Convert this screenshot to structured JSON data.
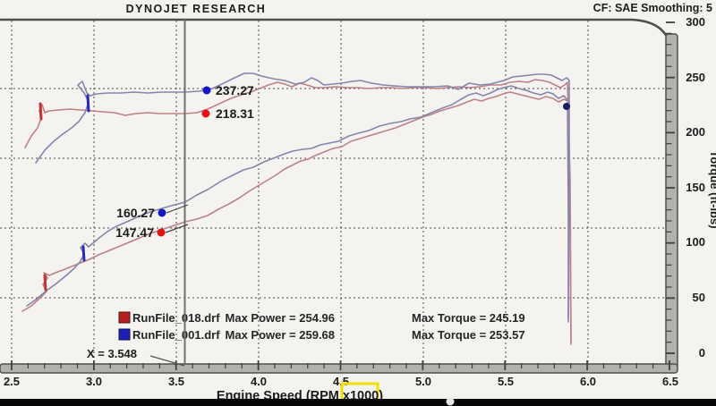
{
  "header": {
    "title": "DYNOJET RESEARCH",
    "settings": "CF: SAE  Smoothing: 5"
  },
  "axes": {
    "x": {
      "label_prefix": "Engine Speed (RPM ",
      "label_highlight": "x1000",
      "label_suffix": ")",
      "ticks": [
        "2.5",
        "3.0",
        "3.5",
        "4.0",
        "4.5",
        "5.0",
        "5.5",
        "6.0",
        "6.5"
      ]
    },
    "torque": {
      "label": "Torque (ft-lbs)",
      "ticks": [
        "300",
        "250",
        "200",
        "150",
        "100",
        "50",
        "0"
      ]
    }
  },
  "cursor": {
    "label": "X = 3.548",
    "x_value": 3.548,
    "readouts": {
      "torque_001": "237.27",
      "torque_018": "218.31",
      "power_001": "160.27",
      "power_018": "147.47"
    }
  },
  "legend": {
    "rows": [
      {
        "file": "RunFile_018.drf",
        "power": "Max Power = 254.96",
        "torque": "Max Torque = 245.19",
        "swatch": "#b51f1f"
      },
      {
        "file": "RunFile_001.drf",
        "power": "Max Power = 259.68",
        "torque": "Max Torque = 253.57",
        "swatch": "#1f1fb5"
      }
    ]
  },
  "colors": {
    "curve_red": "#bd8186",
    "curve_blue": "#8585ad",
    "marker_red": "#e01414",
    "marker_blue": "#1414c8",
    "highlight_yellow": "#f2e005"
  },
  "chart_data": {
    "type": "line",
    "xlabel": "Engine Speed (RPM x1000)",
    "ylabel_right": "Torque (ft-lbs)",
    "x_range": [
      2.5,
      6.5
    ],
    "torque_axis_range": [
      0,
      300
    ],
    "grid": "dashed",
    "legend_position": "bottom-left inside plot",
    "cursor": {
      "x": 3.548,
      "torque_001": 237.27,
      "torque_018": 218.31,
      "power_001": 160.27,
      "power_018": 147.47
    },
    "series": [
      {
        "name": "RunFile_018.drf torque (ft-lbs)",
        "color": "red",
        "points": [
          [
            2.6,
            188
          ],
          [
            2.75,
            219
          ],
          [
            3.0,
            218
          ],
          [
            3.25,
            216
          ],
          [
            3.5,
            216
          ],
          [
            3.548,
            218.31
          ],
          [
            3.75,
            224
          ],
          [
            4.0,
            238
          ],
          [
            4.25,
            243
          ],
          [
            4.5,
            240
          ],
          [
            4.75,
            240
          ],
          [
            5.0,
            240
          ],
          [
            5.25,
            240
          ],
          [
            5.5,
            242
          ],
          [
            5.75,
            245.19
          ],
          [
            5.9,
            244
          ]
        ],
        "max": 245.19
      },
      {
        "name": "RunFile_001.drf torque (ft-lbs)",
        "color": "blue",
        "points": [
          [
            2.65,
            170
          ],
          [
            2.75,
            186
          ],
          [
            3.0,
            234
          ],
          [
            3.25,
            235
          ],
          [
            3.5,
            236
          ],
          [
            3.548,
            237.27
          ],
          [
            3.75,
            238
          ],
          [
            4.0,
            250
          ],
          [
            4.25,
            244
          ],
          [
            4.5,
            244
          ],
          [
            4.75,
            242
          ],
          [
            5.0,
            241
          ],
          [
            5.25,
            243
          ],
          [
            5.5,
            247
          ],
          [
            5.75,
            253.57
          ],
          [
            5.9,
            246
          ]
        ],
        "max": 253.57
      },
      {
        "name": "RunFile_018.drf power (hp)",
        "color": "red",
        "points": [
          [
            2.6,
            75
          ],
          [
            2.75,
            93
          ],
          [
            3.0,
            120
          ],
          [
            3.25,
            134
          ],
          [
            3.5,
            146
          ],
          [
            3.548,
            147.47
          ],
          [
            3.75,
            158
          ],
          [
            4.0,
            180
          ],
          [
            4.25,
            199
          ],
          [
            4.5,
            212
          ],
          [
            4.75,
            224
          ],
          [
            5.0,
            237
          ],
          [
            5.25,
            248
          ],
          [
            5.5,
            254.96
          ],
          [
            5.75,
            250
          ],
          [
            5.9,
            247
          ]
        ],
        "max": 254.96
      },
      {
        "name": "RunFile_001.drf power (hp)",
        "color": "blue",
        "points": [
          [
            2.6,
            62
          ],
          [
            2.75,
            88
          ],
          [
            3.0,
            126
          ],
          [
            3.25,
            146
          ],
          [
            3.5,
            157
          ],
          [
            3.548,
            160.27
          ],
          [
            3.75,
            177
          ],
          [
            4.0,
            193
          ],
          [
            4.25,
            205
          ],
          [
            4.5,
            213
          ],
          [
            4.75,
            227
          ],
          [
            5.0,
            234
          ],
          [
            5.25,
            250
          ],
          [
            5.5,
            258
          ],
          [
            5.75,
            259.68
          ],
          [
            5.9,
            248
          ]
        ],
        "max": 259.68
      }
    ]
  }
}
